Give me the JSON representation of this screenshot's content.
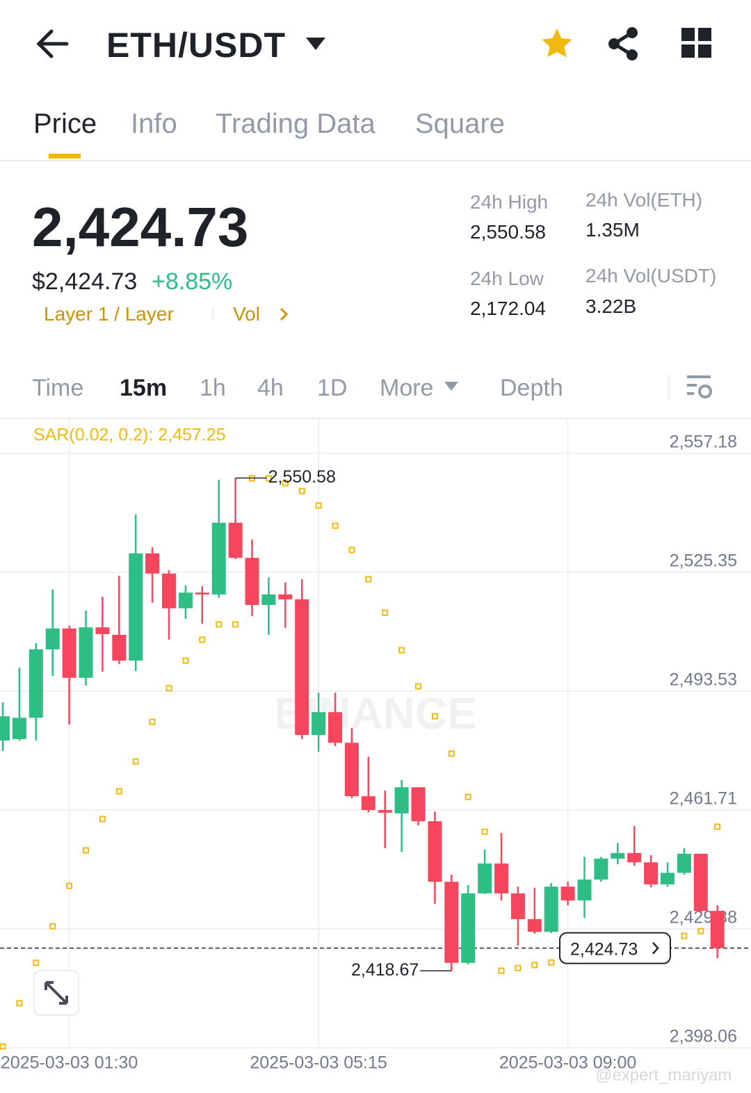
{
  "header": {
    "pair": "ETH/USDT"
  },
  "tabs": [
    "Price",
    "Info",
    "Trading Data",
    "Square"
  ],
  "price": {
    "last": "2,424.73",
    "usd": "$2,424.73",
    "change": "+8.85%",
    "tags": [
      "Layer 1 / Layer",
      "Vol"
    ]
  },
  "stats": [
    {
      "label": "24h High",
      "value": "2,550.58"
    },
    {
      "label": "24h Vol(ETH)",
      "value": "1.35M"
    },
    {
      "label": "24h Low",
      "value": "2,172.04"
    },
    {
      "label": "24h Vol(USDT)",
      "value": "3.22B"
    }
  ],
  "intervals": [
    "Time",
    "15m",
    "1h",
    "4h",
    "1D",
    "More",
    "Depth"
  ],
  "logo_watermark": "BINANCE",
  "watermark": "@expert_mariyam",
  "chart_data": {
    "type": "candlestick",
    "sar_label": "SAR(0.02, 0.2): 2,457.25",
    "categories": [
      null,
      null,
      null,
      null,
      "2025-03-03 01:30",
      null,
      null,
      null,
      null,
      null,
      null,
      null,
      null,
      null,
      null,
      null,
      null,
      null,
      null,
      "2025-03-03 05:15",
      null,
      null,
      null,
      null,
      null,
      null,
      null,
      null,
      null,
      null,
      null,
      null,
      null,
      null,
      "2025-03-03 09:00",
      null,
      null,
      null,
      null,
      null,
      null,
      null,
      null,
      null
    ],
    "open": [
      2480.3,
      2480.7,
      2486.4,
      2504.7,
      2510.3,
      2497.1,
      2510.6,
      2508.6,
      2501.7,
      2530.4,
      2525.0,
      2515.7,
      2519.9,
      2519.4,
      2538.6,
      2529.2,
      2516.6,
      2519.4,
      2518.1,
      2481.8,
      2487.9,
      2479.7,
      2465.4,
      2461.7,
      2460.8,
      2467.8,
      2458.7,
      2442.5,
      2420.8,
      2439.4,
      2447.4,
      2439.4,
      2432.5,
      2429.1,
      2441.2,
      2437.5,
      2443.1,
      2448.7,
      2450.2,
      2447.7,
      2441.8,
      2444.9,
      2450.0,
      2434.7
    ],
    "high": [
      2490.5,
      2499.8,
      2506.4,
      2520.7,
      2511.0,
      2515.1,
      2518.8,
      2524.4,
      2540.8,
      2532.0,
      2525.9,
      2521.8,
      2521.6,
      2550.1,
      2550.58,
      2534.1,
      2524.0,
      2522.6,
      2523.5,
      2493.1,
      2493.1,
      2483.7,
      2476.0,
      2466.9,
      2469.7,
      2467.8,
      2461.3,
      2444.4,
      2441.6,
      2451.1,
      2455.6,
      2441.2,
      2440.9,
      2442.2,
      2442.5,
      2449.2,
      2449.2,
      2452.9,
      2457.4,
      2449.6,
      2447.7,
      2451.5,
      2450.0,
      2436.2
    ],
    "low": [
      2477.5,
      2480.3,
      2480.3,
      2497.6,
      2484.6,
      2495.0,
      2498.7,
      2500.8,
      2498.9,
      2517.2,
      2507.3,
      2512.9,
      2511.6,
      2518.5,
      2528.9,
      2513.6,
      2508.6,
      2510.5,
      2480.7,
      2477.3,
      2478.8,
      2464.9,
      2461.1,
      2451.5,
      2450.5,
      2457.6,
      2436.6,
      2418.67,
      2420.4,
      2439.2,
      2437.5,
      2425.4,
      2428.6,
      2428.8,
      2436.2,
      2432.8,
      2442.5,
      2447.2,
      2446.8,
      2441.0,
      2441.2,
      2444.4,
      2434.0,
      2422.1
    ],
    "close": [
      2486.8,
      2486.4,
      2504.7,
      2510.3,
      2497.1,
      2510.6,
      2508.8,
      2501.7,
      2530.4,
      2525.0,
      2515.7,
      2519.9,
      2519.4,
      2538.6,
      2529.2,
      2516.6,
      2519.4,
      2518.1,
      2481.8,
      2487.9,
      2479.7,
      2465.4,
      2461.7,
      2461.0,
      2467.8,
      2458.7,
      2442.5,
      2420.8,
      2439.4,
      2447.4,
      2439.4,
      2432.5,
      2429.1,
      2441.2,
      2437.5,
      2443.1,
      2448.7,
      2450.2,
      2447.7,
      2441.8,
      2444.9,
      2450.0,
      2434.7,
      2424.73
    ],
    "sar": [
      2398.4,
      2410.0,
      2420.8,
      2430.6,
      2441.4,
      2450.9,
      2459.3,
      2466.7,
      2474.7,
      2485.3,
      2494.3,
      2501.7,
      2507.3,
      2511.4,
      2511.4,
      2550.5,
      2550.5,
      2549.2,
      2547.1,
      2543.2,
      2537.8,
      2531.3,
      2523.5,
      2514.5,
      2504.5,
      2494.8,
      2486.8,
      2476.8,
      2465.2,
      2455.9,
      2418.7,
      2419.4,
      2420.2,
      2420.9,
      2421.7,
      2422.4,
      2423.2,
      2423.9,
      2424.5,
      2425.0,
      2426.1,
      2428.0,
      2429.3,
      2457.25
    ],
    "up_color": "#2ebd85",
    "down_color": "#f6465d",
    "sar_color": "#f0b90b",
    "ylim": [
      2397.5,
      2566.3
    ],
    "yticks": [
      {
        "value": 2398.06,
        "label": "2,398.06"
      },
      {
        "value": 2429.88,
        "label": "2,429.88"
      },
      {
        "value": 2461.71,
        "label": "2,461.71"
      },
      {
        "value": 2493.53,
        "label": "2,493.53"
      },
      {
        "value": 2525.35,
        "label": "2,525.35"
      },
      {
        "value": 2557.18,
        "label": "2,557.18"
      }
    ],
    "grid": true,
    "annotations": [
      {
        "label": "2,550.58",
        "value": 2550.58
      },
      {
        "label": "2,418.67",
        "value": 2418.67
      }
    ],
    "last_price": {
      "label": "2,424.73",
      "value": 2424.73
    }
  }
}
